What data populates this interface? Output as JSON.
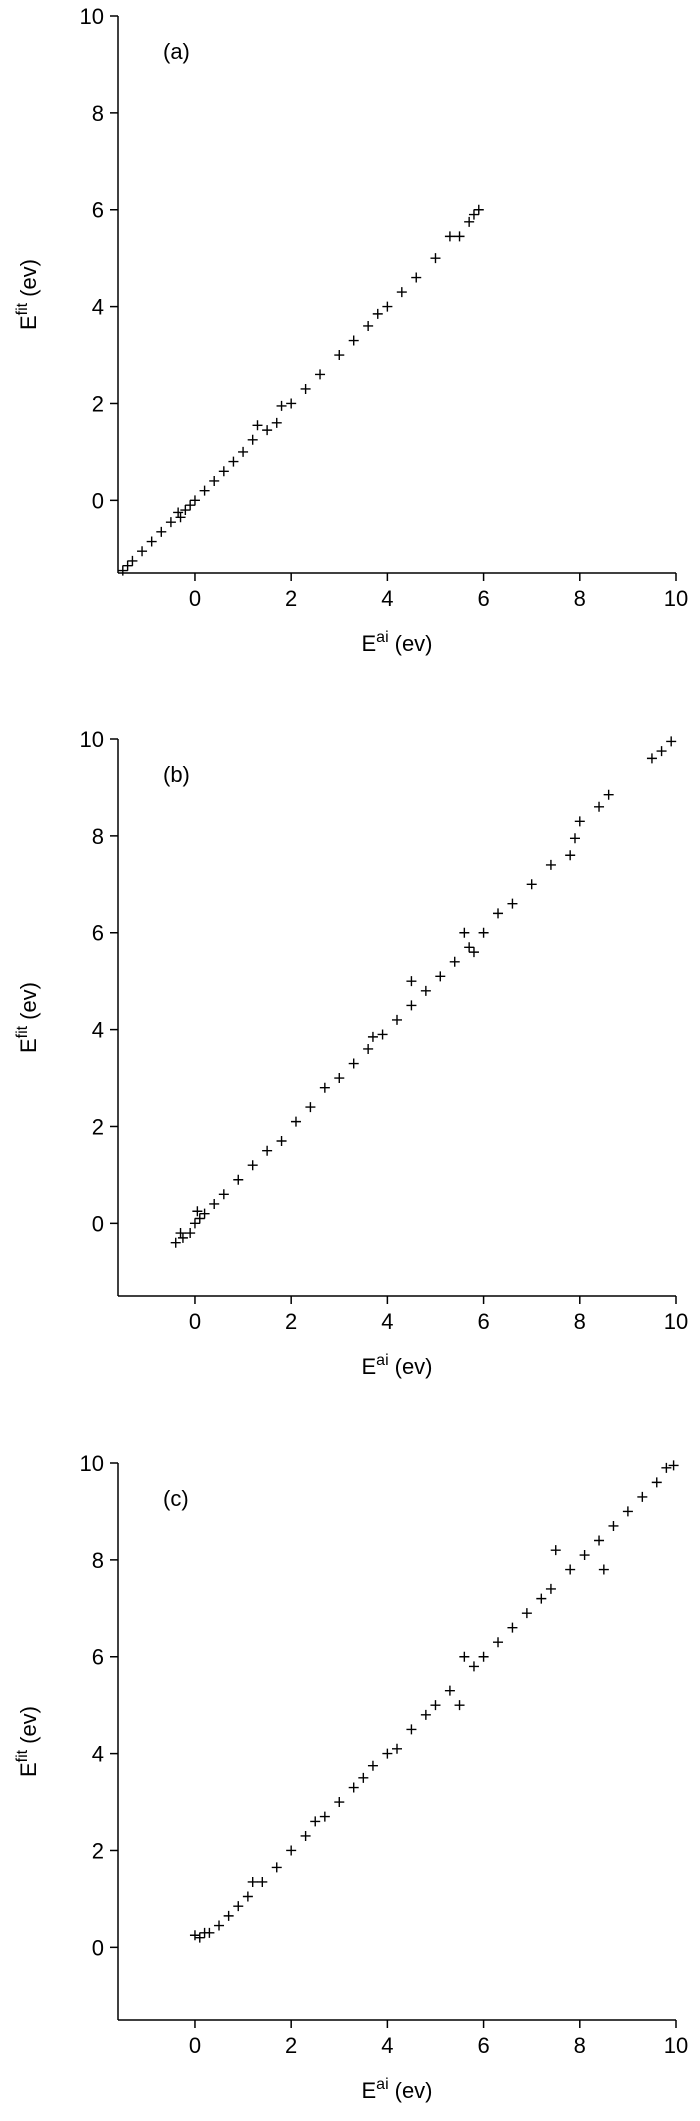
{
  "chart_data": [
    {
      "type": "scatter",
      "panel_label": "(a)",
      "color": "#000000",
      "xlabel": {
        "base": "E",
        "sup": "ai",
        "rest": "(ev)"
      },
      "ylabel": {
        "base": "E",
        "sup": "fit",
        "rest": "(ev)"
      },
      "xlim": [
        -1.6,
        10
      ],
      "ylim": [
        -1.5,
        10
      ],
      "xticks": [
        0,
        2,
        4,
        6,
        8,
        10
      ],
      "yticks": [
        0,
        2,
        4,
        6,
        8,
        10
      ],
      "x": [
        -1.5,
        -1.4,
        -1.3,
        -1.1,
        -0.9,
        -0.7,
        -0.5,
        -0.35,
        -0.3,
        -0.2,
        -0.1,
        0.0,
        0.2,
        0.4,
        0.6,
        0.8,
        1.0,
        1.2,
        1.3,
        1.5,
        1.7,
        1.8,
        2.0,
        2.3,
        2.6,
        3.0,
        3.3,
        3.6,
        3.8,
        4.0,
        4.3,
        4.6,
        5.0,
        5.3,
        5.5,
        5.7,
        5.8,
        5.9
      ],
      "y": [
        -1.45,
        -1.35,
        -1.25,
        -1.05,
        -0.85,
        -0.65,
        -0.45,
        -0.25,
        -0.35,
        -0.2,
        -0.1,
        0.0,
        0.2,
        0.4,
        0.6,
        0.8,
        1.0,
        1.25,
        1.55,
        1.45,
        1.6,
        1.95,
        2.0,
        2.3,
        2.6,
        3.0,
        3.3,
        3.6,
        3.85,
        4.0,
        4.3,
        4.6,
        5.0,
        5.45,
        5.45,
        5.75,
        5.9,
        6.0
      ]
    },
    {
      "type": "scatter",
      "panel_label": "(b)",
      "color": "#000000",
      "xlabel": {
        "base": "E",
        "sup": "ai",
        "rest": "(ev)"
      },
      "ylabel": {
        "base": "E",
        "sup": "fit",
        "rest": "(ev)"
      },
      "xlim": [
        -1.6,
        10
      ],
      "ylim": [
        -1.5,
        10
      ],
      "xticks": [
        0,
        2,
        4,
        6,
        8,
        10
      ],
      "yticks": [
        0,
        2,
        4,
        6,
        8,
        10
      ],
      "x": [
        -0.4,
        -0.3,
        -0.25,
        -0.1,
        0.0,
        0.05,
        0.1,
        0.2,
        0.4,
        0.6,
        0.9,
        1.2,
        1.5,
        1.8,
        2.1,
        2.4,
        2.7,
        3.0,
        3.3,
        3.6,
        3.7,
        3.9,
        4.2,
        4.5,
        4.5,
        4.8,
        5.1,
        5.4,
        5.6,
        5.7,
        5.8,
        6.0,
        6.3,
        6.6,
        7.0,
        7.4,
        7.8,
        7.9,
        8.0,
        8.4,
        8.6,
        9.5,
        9.7,
        9.9
      ],
      "y": [
        -0.4,
        -0.2,
        -0.3,
        -0.2,
        0.0,
        0.25,
        0.1,
        0.2,
        0.4,
        0.6,
        0.9,
        1.2,
        1.5,
        1.7,
        2.1,
        2.4,
        2.8,
        3.0,
        3.3,
        3.6,
        3.85,
        3.9,
        4.2,
        4.5,
        5.0,
        4.8,
        5.1,
        5.4,
        6.0,
        5.7,
        5.6,
        6.0,
        6.4,
        6.6,
        7.0,
        7.4,
        7.6,
        7.95,
        8.3,
        8.6,
        8.85,
        9.6,
        9.75,
        9.95
      ]
    },
    {
      "type": "scatter",
      "panel_label": "(c)",
      "color": "#000000",
      "xlabel": {
        "base": "E",
        "sup": "ai",
        "rest": "(ev)"
      },
      "ylabel": {
        "base": "E",
        "sup": "fit",
        "rest": "(ev)"
      },
      "xlim": [
        -1.6,
        10
      ],
      "ylim": [
        -1.5,
        10
      ],
      "xticks": [
        0,
        2,
        4,
        6,
        8,
        10
      ],
      "yticks": [
        0,
        2,
        4,
        6,
        8,
        10
      ],
      "x": [
        0.0,
        0.1,
        0.2,
        0.3,
        0.5,
        0.7,
        0.9,
        1.1,
        1.2,
        1.4,
        1.7,
        2.0,
        2.3,
        2.5,
        2.7,
        3.0,
        3.3,
        3.5,
        3.7,
        4.0,
        4.2,
        4.5,
        4.8,
        5.0,
        5.3,
        5.5,
        5.6,
        5.8,
        6.0,
        6.3,
        6.6,
        6.9,
        7.2,
        7.4,
        7.5,
        7.8,
        8.1,
        8.4,
        8.5,
        8.7,
        9.0,
        9.3,
        9.6,
        9.8,
        9.95
      ],
      "y": [
        0.25,
        0.2,
        0.3,
        0.3,
        0.45,
        0.65,
        0.85,
        1.05,
        1.35,
        1.35,
        1.65,
        2.0,
        2.3,
        2.6,
        2.7,
        3.0,
        3.3,
        3.5,
        3.75,
        4.0,
        4.1,
        4.5,
        4.8,
        5.0,
        5.3,
        5.0,
        6.0,
        5.8,
        6.0,
        6.3,
        6.6,
        6.9,
        7.2,
        7.4,
        8.2,
        7.8,
        8.1,
        8.4,
        7.8,
        8.7,
        9.0,
        9.3,
        9.6,
        9.9,
        9.95
      ]
    }
  ]
}
